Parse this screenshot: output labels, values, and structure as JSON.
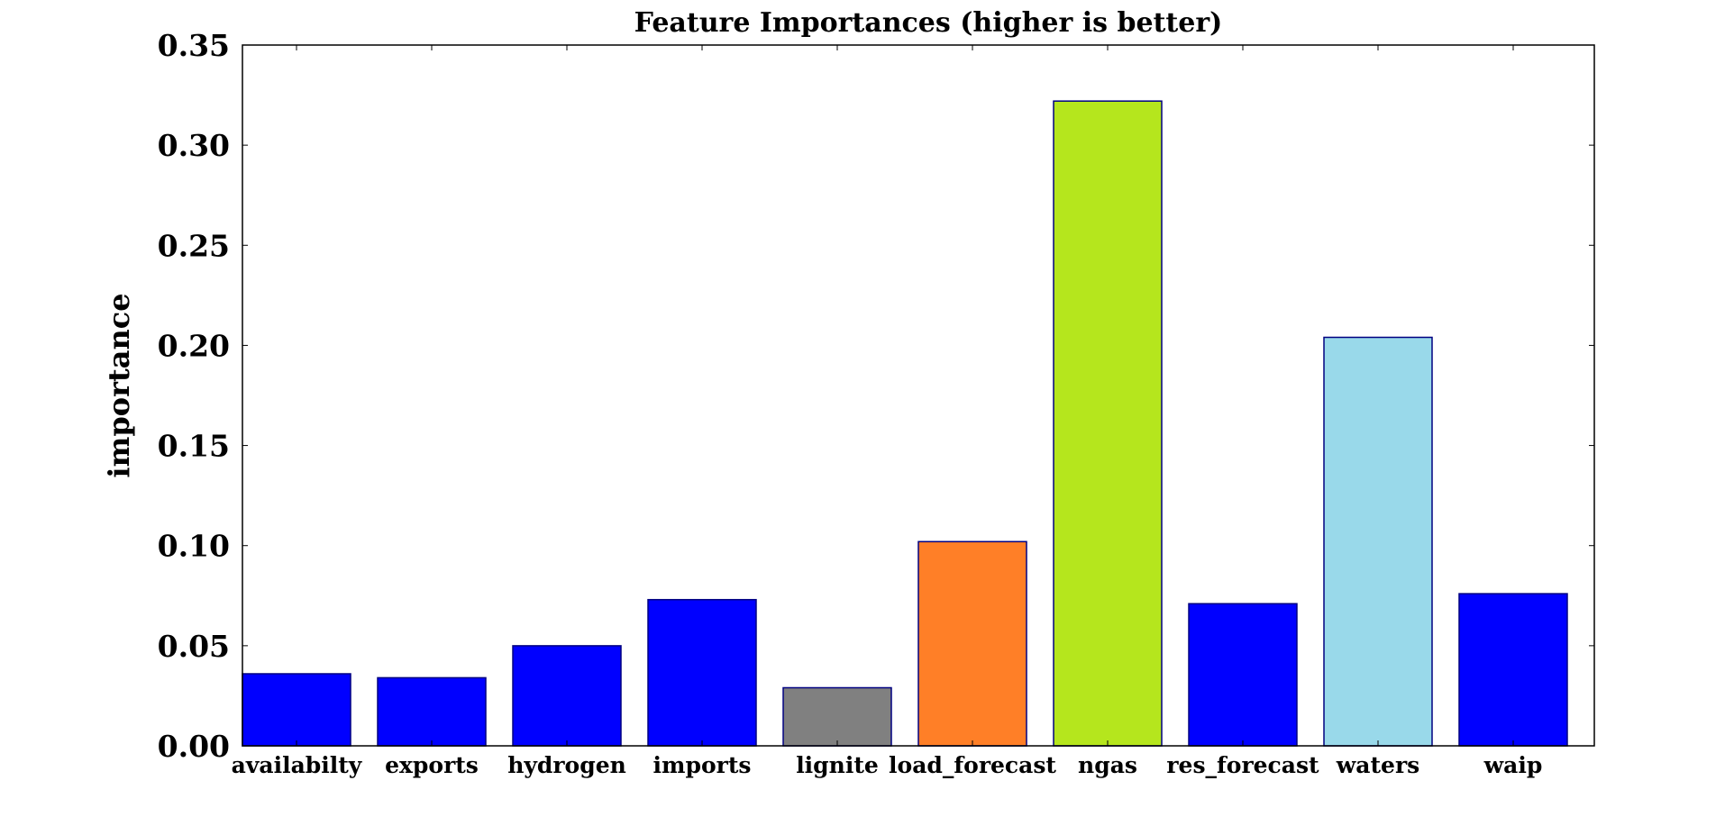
{
  "chart_data": {
    "type": "bar",
    "title": "Feature Importances (higher is better)",
    "xlabel": "",
    "ylabel": "importance",
    "ylim": [
      0,
      0.35
    ],
    "yticks": [
      "0.00",
      "0.05",
      "0.10",
      "0.15",
      "0.20",
      "0.25",
      "0.30",
      "0.35"
    ],
    "categories": [
      "availabilty",
      "exports",
      "hydrogen",
      "imports",
      "lignite",
      "load_forecast",
      "ngas",
      "res_forecast",
      "waters",
      "waip"
    ],
    "values": [
      0.036,
      0.034,
      0.05,
      0.073,
      0.029,
      0.102,
      0.322,
      0.071,
      0.204,
      0.076
    ],
    "colors": [
      "#0000ff",
      "#0000ff",
      "#0000ff",
      "#0000ff",
      "#808080",
      "#ff7f27",
      "#b5e61d",
      "#0000ff",
      "#99d9ea",
      "#0000ff"
    ],
    "bar_edge_color": "#000080",
    "grid": false,
    "legend": "none"
  }
}
